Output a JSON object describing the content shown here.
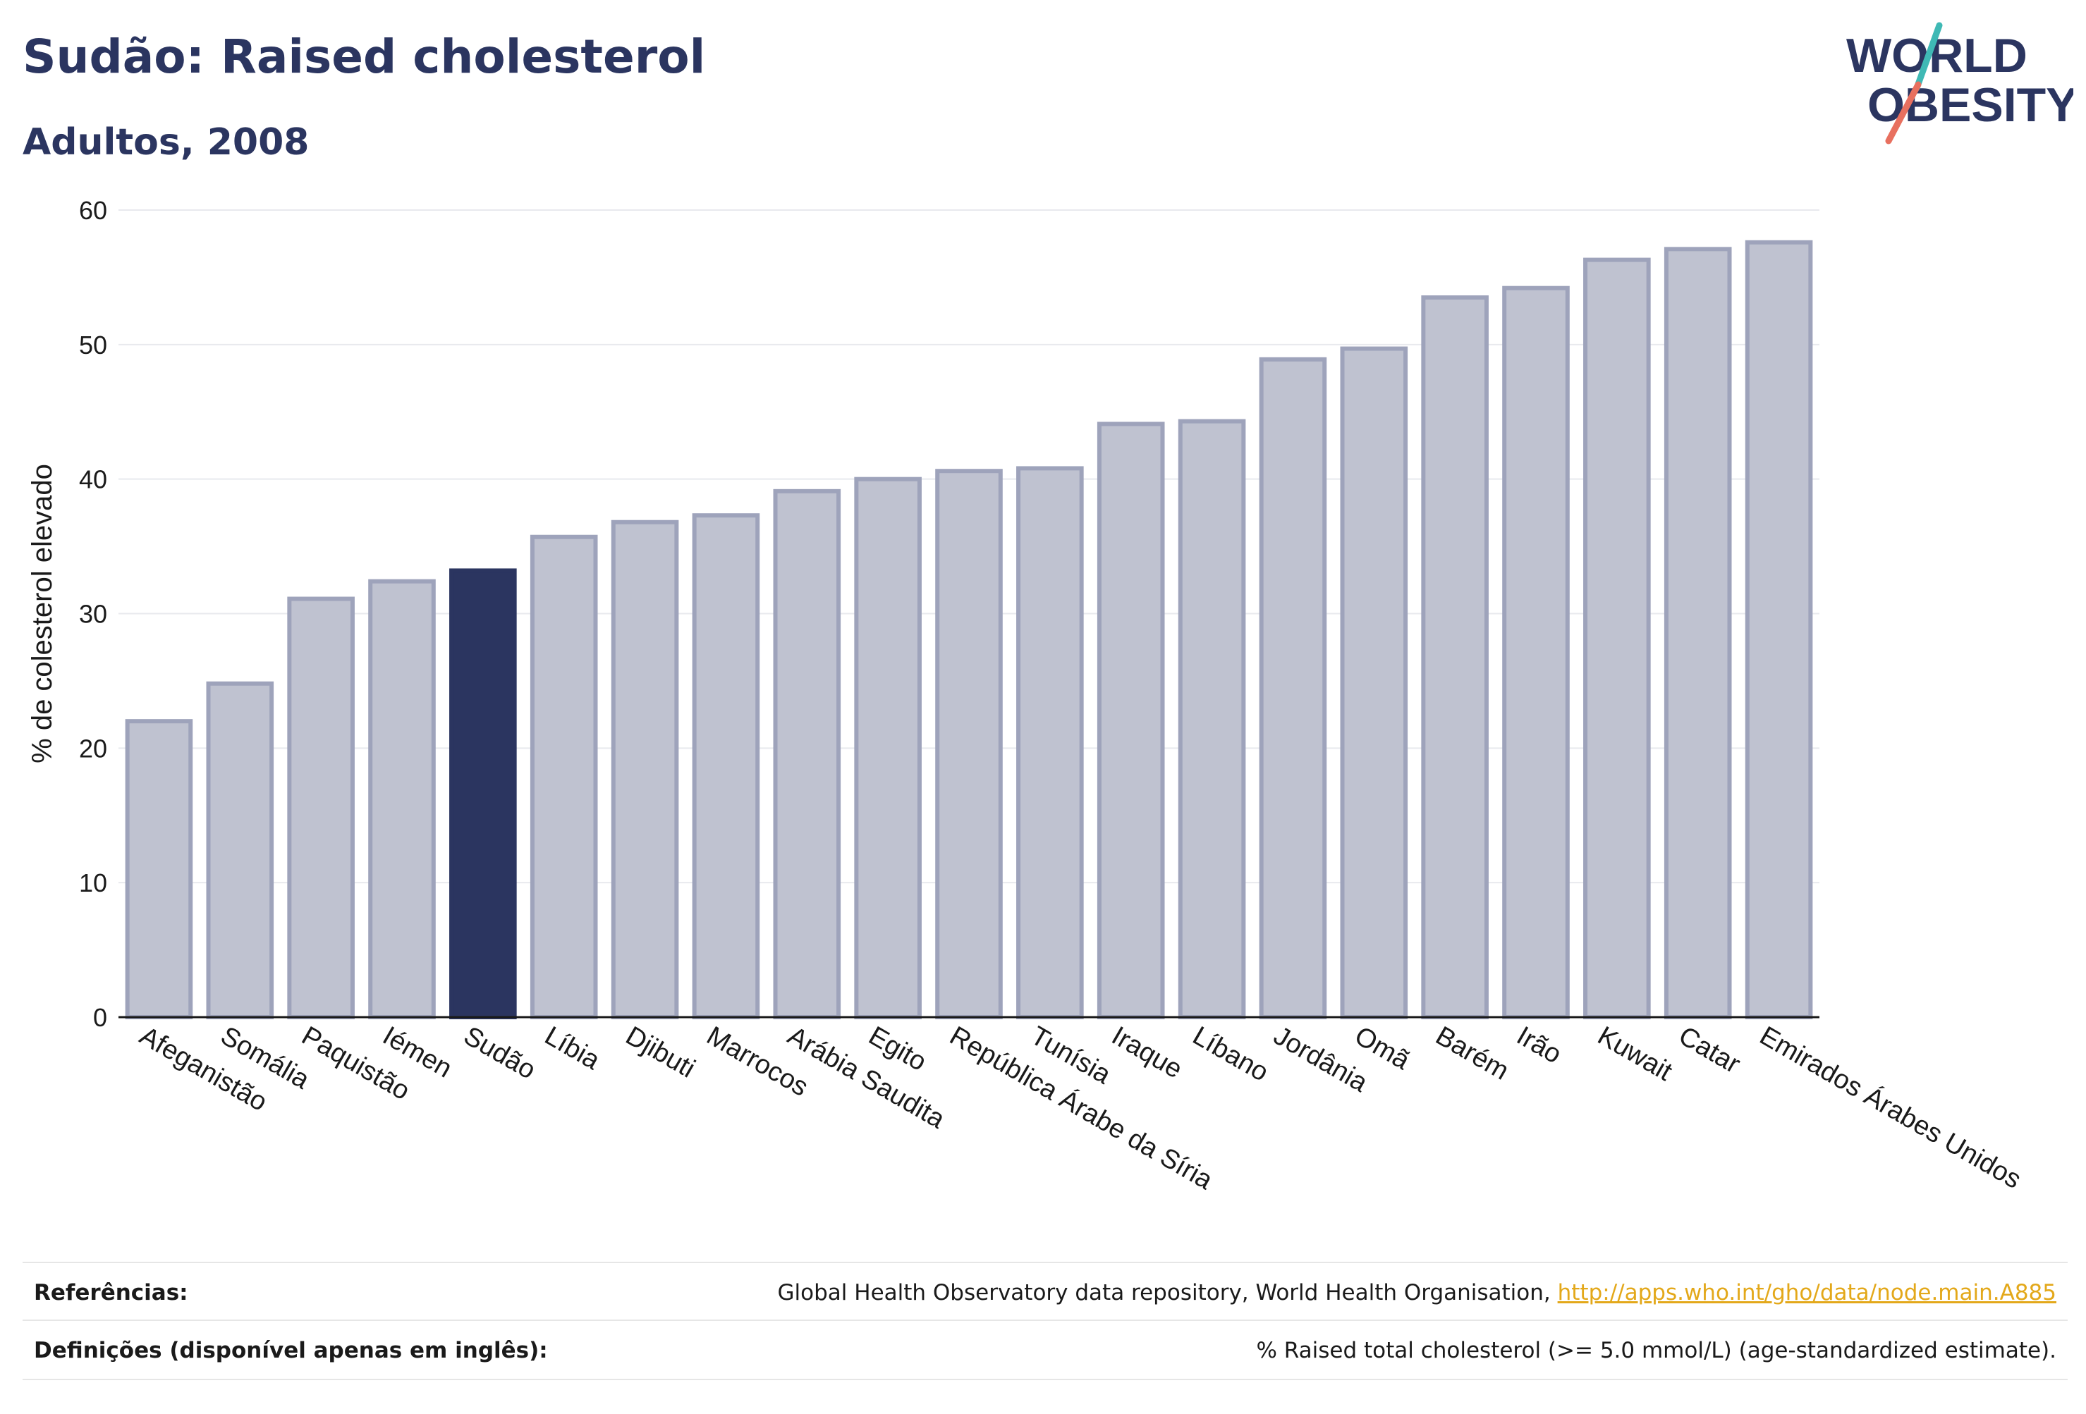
{
  "header": {
    "title": "Sudão: Raised cholesterol",
    "subtitle": "Adultos, 2008",
    "logo_line1": "WORLD",
    "logo_line2": "OBESITY"
  },
  "colors": {
    "highlight": "#2b3560",
    "bar_fill": "#bfc2d0",
    "bar_stroke": "#9ea3bb",
    "title": "#2b3560",
    "link": "#e3a81a",
    "logo_teal": "#3fb9b5",
    "logo_coral": "#e8705f"
  },
  "chart_data": {
    "type": "bar",
    "ylabel": "% de colesterol elevado",
    "xlabel": "",
    "ylim": [
      0,
      60
    ],
    "yticks": [
      0,
      10,
      20,
      30,
      40,
      50,
      60
    ],
    "grid": true,
    "highlight": "Sudão",
    "categories": [
      "Afeganistão",
      "Somália",
      "Paquistão",
      "Iémen",
      "Sudão",
      "Líbia",
      "Djibuti",
      "Marrocos",
      "Arábia Saudita",
      "Egito",
      "República Árabe da Síria",
      "Tunísia",
      "Iraque",
      "Líbano",
      "Jordânia",
      "Omã",
      "Barém",
      "Irão",
      "Kuwait",
      "Catar",
      "Emirados Árabes Unidos"
    ],
    "values": [
      22.0,
      24.8,
      31.1,
      32.4,
      33.2,
      35.7,
      36.8,
      37.3,
      39.1,
      40.0,
      40.6,
      40.8,
      44.1,
      44.3,
      48.9,
      49.7,
      53.5,
      54.2,
      56.3,
      57.1,
      57.6
    ]
  },
  "footer": {
    "references_label": "Referências:",
    "references_text": "Global Health Observatory data repository, World Health Organisation, ",
    "references_link": "http://apps.who.int/gho/data/node.main.A885",
    "definitions_label": "Definições (disponível apenas em inglês):",
    "definitions_text": "% Raised total cholesterol (>= 5.0 mmol/L) (age-standardized estimate)."
  }
}
